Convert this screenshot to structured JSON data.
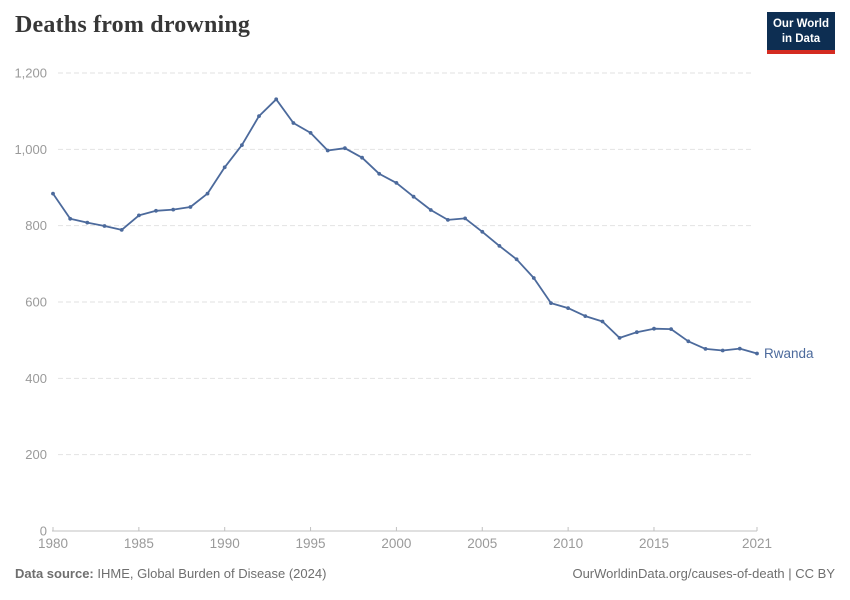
{
  "header": {
    "title": "Deaths from drowning",
    "logo": {
      "line1": "Our World",
      "line2": "in Data"
    }
  },
  "footer": {
    "source_label": "Data source:",
    "source_text": " IHME, Global Burden of Disease (2024)",
    "right_text": "OurWorldinData.org/causes-of-death | CC BY"
  },
  "colors": {
    "series_line": "#4c6a9c",
    "series_label": "#4c6a9c",
    "gridline": "#e2e2e2",
    "axis_line": "#c0c0c0",
    "tick_label": "#9a9a9a",
    "title_text": "#373737",
    "logo_bg": "#0d2e52",
    "logo_strip": "#d42b21",
    "footer_text": "#6f6f6f"
  },
  "chart_data": {
    "type": "line",
    "title": "Deaths from drowning",
    "xlabel": "",
    "ylabel": "",
    "xlim": [
      1980,
      2021
    ],
    "ylim": [
      0,
      1200
    ],
    "grid": "horizontal-dashed",
    "legend": "end-of-line-label",
    "x": [
      1980,
      1981,
      1982,
      1983,
      1984,
      1985,
      1986,
      1987,
      1988,
      1989,
      1990,
      1991,
      1992,
      1993,
      1994,
      1995,
      1996,
      1997,
      1998,
      1999,
      2000,
      2001,
      2002,
      2003,
      2004,
      2005,
      2006,
      2007,
      2008,
      2009,
      2010,
      2011,
      2012,
      2013,
      2014,
      2015,
      2016,
      2017,
      2018,
      2019,
      2020,
      2021
    ],
    "series": [
      {
        "name": "Rwanda",
        "values": [
          884,
          818,
          808,
          799,
          789,
          827,
          839,
          842,
          849,
          884,
          953,
          1011,
          1087,
          1131,
          1069,
          1043,
          997,
          1003,
          978,
          936,
          912,
          876,
          841,
          815,
          819,
          784,
          747,
          712,
          663,
          597,
          584,
          563,
          549,
          506,
          521,
          530,
          529,
          497,
          477,
          473,
          478,
          465
        ]
      }
    ],
    "xticks": [
      {
        "v": 1980,
        "label": "1980"
      },
      {
        "v": 1985,
        "label": "1985"
      },
      {
        "v": 1990,
        "label": "1990"
      },
      {
        "v": 1995,
        "label": "1995"
      },
      {
        "v": 2000,
        "label": "2000"
      },
      {
        "v": 2005,
        "label": "2005"
      },
      {
        "v": 2010,
        "label": "2010"
      },
      {
        "v": 2015,
        "label": "2015"
      },
      {
        "v": 2021,
        "label": "2021"
      }
    ],
    "yticks": [
      {
        "v": 0,
        "label": "0"
      },
      {
        "v": 200,
        "label": "200"
      },
      {
        "v": 400,
        "label": "400"
      },
      {
        "v": 600,
        "label": "600"
      },
      {
        "v": 800,
        "label": "800"
      },
      {
        "v": 1000,
        "label": "1,000"
      },
      {
        "v": 1200,
        "label": "1,200"
      }
    ]
  }
}
